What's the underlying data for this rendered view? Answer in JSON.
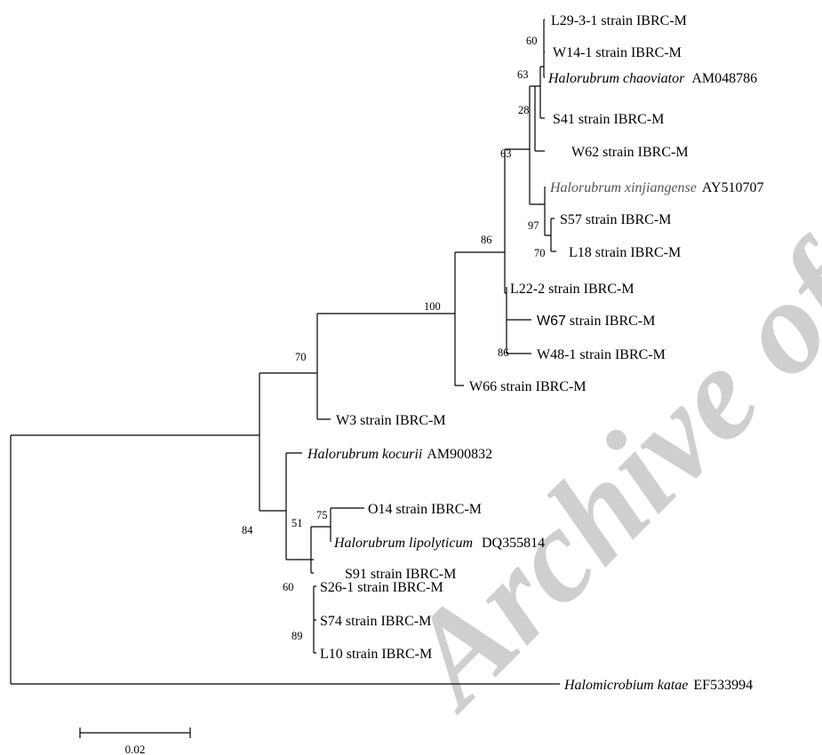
{
  "tree": {
    "leaves": [
      {
        "id": "l29",
        "species": "",
        "label": "L29-3-1 strain IBRC-M"
      },
      {
        "id": "w14",
        "species": "",
        "label": "W14-1 strain IBRC-M"
      },
      {
        "id": "hchao",
        "species": "Halorubrum chaoviator",
        "label": "AM048786"
      },
      {
        "id": "s41",
        "species": "",
        "label": "S41 strain IBRC-M"
      },
      {
        "id": "w62",
        "species": "",
        "label": "W62 strain IBRC-M"
      },
      {
        "id": "hxin",
        "species": "Halorubrum  xinjiangense",
        "label": "AY510707"
      },
      {
        "id": "s57",
        "species": "",
        "label": "S57 strain IBRC-M"
      },
      {
        "id": "l18",
        "species": "",
        "label": "L18 strain IBRC-M"
      },
      {
        "id": "l22",
        "species": "",
        "label": "L22-2 strain IBRC-M"
      },
      {
        "id": "w67",
        "species": "",
        "label": "W67",
        "suffix": " strain IBRC-M"
      },
      {
        "id": "w48",
        "species": "",
        "label": "W48-1 strain IBRC-M"
      },
      {
        "id": "w66",
        "species": "",
        "label": "W66 strain IBRC-M"
      },
      {
        "id": "w3",
        "species": "",
        "label": "W3 strain IBRC-M"
      },
      {
        "id": "hkoc",
        "species": "Halorubrum kocurii",
        "label": "AM900832"
      },
      {
        "id": "o14",
        "species": "",
        "label": "O14 strain IBRC-M"
      },
      {
        "id": "hlip",
        "species": "Halorubrum lipolyticum",
        "label": "DQ355814"
      },
      {
        "id": "s91",
        "species": "",
        "label": "S91 strain IBRC-M"
      },
      {
        "id": "s26",
        "species": "",
        "label": "S26-1 strain IBRC-M"
      },
      {
        "id": "s74",
        "species": "",
        "label": "S74 strain IBRC-M"
      },
      {
        "id": "l10",
        "species": "",
        "label": "L10 strain IBRC-M"
      },
      {
        "id": "hkat",
        "species": "Halomicrobium katae",
        "label": "EF533994"
      }
    ],
    "bootstrap": [
      "60",
      "63",
      "28",
      "63",
      "97",
      "70",
      "86",
      "100",
      "86",
      "70",
      "75",
      "51",
      "84",
      "60",
      "89"
    ],
    "scale_bar": {
      "value": "0.02"
    },
    "watermark": "Archive of SID",
    "colors": {
      "line": "#000000",
      "text": "#000000",
      "gray_text": "#555555",
      "watermark": "#cfcfcf"
    }
  }
}
